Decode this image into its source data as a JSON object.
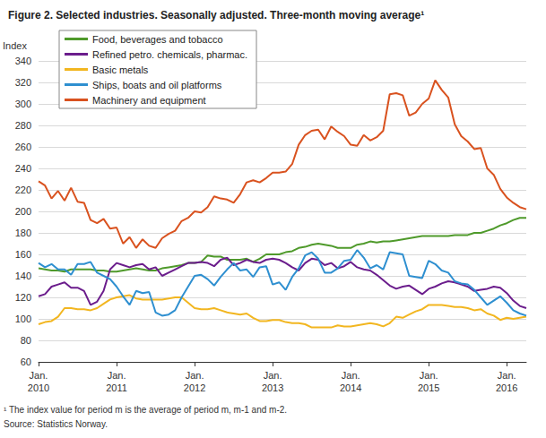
{
  "chart_data": {
    "type": "line",
    "title": "Figure 2. Selected industries. Seasonally adjusted. Three-month moving average¹",
    "y_label": "Index",
    "footnote": "¹ The index value for period m is the average of period m, m-1 and m-2.",
    "source": "Source: Statistics Norway.",
    "legend": "upper left",
    "grid": true,
    "ylim": [
      60,
      340
    ],
    "yticks": [
      60,
      80,
      100,
      120,
      140,
      160,
      180,
      200,
      220,
      240,
      260,
      280,
      300,
      320,
      340
    ],
    "categories": [
      "Jan.\n2010",
      null,
      null,
      null,
      null,
      null,
      null,
      null,
      null,
      null,
      null,
      null,
      "Jan.\n2011",
      null,
      null,
      null,
      null,
      null,
      null,
      null,
      null,
      null,
      null,
      null,
      "Jan.\n2012",
      null,
      null,
      null,
      null,
      null,
      null,
      null,
      null,
      null,
      null,
      null,
      "Jan.\n2013",
      null,
      null,
      null,
      null,
      null,
      null,
      null,
      null,
      null,
      null,
      null,
      "Jan.\n2014",
      null,
      null,
      null,
      null,
      null,
      null,
      null,
      null,
      null,
      null,
      null,
      "Jan.\n2015",
      null,
      null,
      null,
      null,
      null,
      null,
      null,
      null,
      null,
      null,
      null,
      "Jan.\n2016",
      null,
      null,
      null
    ],
    "series": [
      {
        "name": "Food, beverages and tobacco",
        "color": "#4f9a2b",
        "values": [
          147,
          146,
          145,
          145,
          144,
          146,
          146,
          146,
          146,
          145,
          145,
          144,
          144,
          145,
          146,
          147,
          146,
          145,
          145,
          147,
          148,
          149,
          150,
          152,
          152,
          153,
          159,
          158,
          158,
          155,
          155,
          155,
          156,
          153,
          156,
          160,
          160,
          160,
          162,
          163,
          166,
          167,
          169,
          170,
          169,
          168,
          166,
          166,
          166,
          169,
          170,
          172,
          171,
          172,
          172,
          173,
          174,
          175,
          176,
          177,
          177,
          177,
          177,
          177,
          178,
          178,
          178,
          180,
          180,
          182,
          184,
          187,
          189,
          192,
          194,
          194
        ]
      },
      {
        "name": "Refined petro. chemicals, pharmac.",
        "color": "#6b1d8c",
        "values": [
          121,
          123,
          130,
          132,
          134,
          129,
          129,
          126,
          113,
          116,
          126,
          146,
          152,
          150,
          148,
          150,
          151,
          146,
          148,
          140,
          143,
          146,
          149,
          152,
          152,
          153,
          152,
          149,
          155,
          157,
          150,
          152,
          155,
          153,
          152,
          155,
          156,
          155,
          152,
          148,
          145,
          152,
          156,
          155,
          150,
          152,
          147,
          149,
          153,
          148,
          146,
          145,
          141,
          136,
          131,
          128,
          130,
          131,
          127,
          123,
          128,
          130,
          133,
          135,
          134,
          132,
          130,
          126,
          127,
          128,
          130,
          129,
          124,
          117,
          112,
          110
        ]
      },
      {
        "name": "Basic metals",
        "color": "#f2b620",
        "values": [
          95,
          97,
          98,
          102,
          110,
          110,
          109,
          109,
          108,
          110,
          114,
          118,
          120,
          121,
          122,
          119,
          118,
          118,
          118,
          118,
          119,
          120,
          120,
          115,
          110,
          109,
          109,
          110,
          108,
          106,
          105,
          104,
          105,
          101,
          98,
          98,
          99,
          99,
          97,
          96,
          96,
          95,
          92,
          92,
          92,
          92,
          94,
          93,
          93,
          94,
          95,
          96,
          95,
          93,
          96,
          102,
          101,
          104,
          107,
          109,
          113,
          113,
          113,
          112,
          111,
          111,
          110,
          108,
          109,
          105,
          103,
          99,
          101,
          100,
          101,
          102
        ]
      },
      {
        "name": "Ships, boats and oil platforms",
        "color": "#2e8fd0",
        "values": [
          152,
          148,
          151,
          146,
          146,
          141,
          151,
          151,
          153,
          143,
          140,
          137,
          130,
          121,
          113,
          126,
          124,
          125,
          106,
          103,
          104,
          108,
          120,
          130,
          140,
          141,
          137,
          131,
          139,
          146,
          152,
          145,
          146,
          139,
          148,
          149,
          132,
          134,
          127,
          139,
          147,
          159,
          162,
          156,
          143,
          143,
          147,
          154,
          155,
          164,
          157,
          147,
          150,
          146,
          162,
          161,
          160,
          140,
          139,
          138,
          154,
          151,
          145,
          143,
          135,
          133,
          132,
          127,
          120,
          113,
          117,
          121,
          115,
          108,
          105,
          103
        ]
      },
      {
        "name": "Machinery and equipment",
        "color": "#d9521f",
        "values": [
          228,
          224,
          212,
          219,
          210,
          222,
          209,
          208,
          192,
          189,
          193,
          184,
          185,
          170,
          176,
          166,
          174,
          168,
          166,
          175,
          179,
          182,
          191,
          194,
          200,
          199,
          204,
          214,
          212,
          211,
          208,
          216,
          227,
          229,
          227,
          231,
          236,
          236,
          237,
          244,
          262,
          271,
          275,
          276,
          267,
          279,
          274,
          270,
          262,
          261,
          271,
          266,
          269,
          275,
          309,
          310,
          308,
          289,
          292,
          300,
          305,
          322,
          313,
          306,
          281,
          270,
          265,
          258,
          259,
          240,
          234,
          221,
          213,
          208,
          204,
          202
        ]
      }
    ]
  }
}
